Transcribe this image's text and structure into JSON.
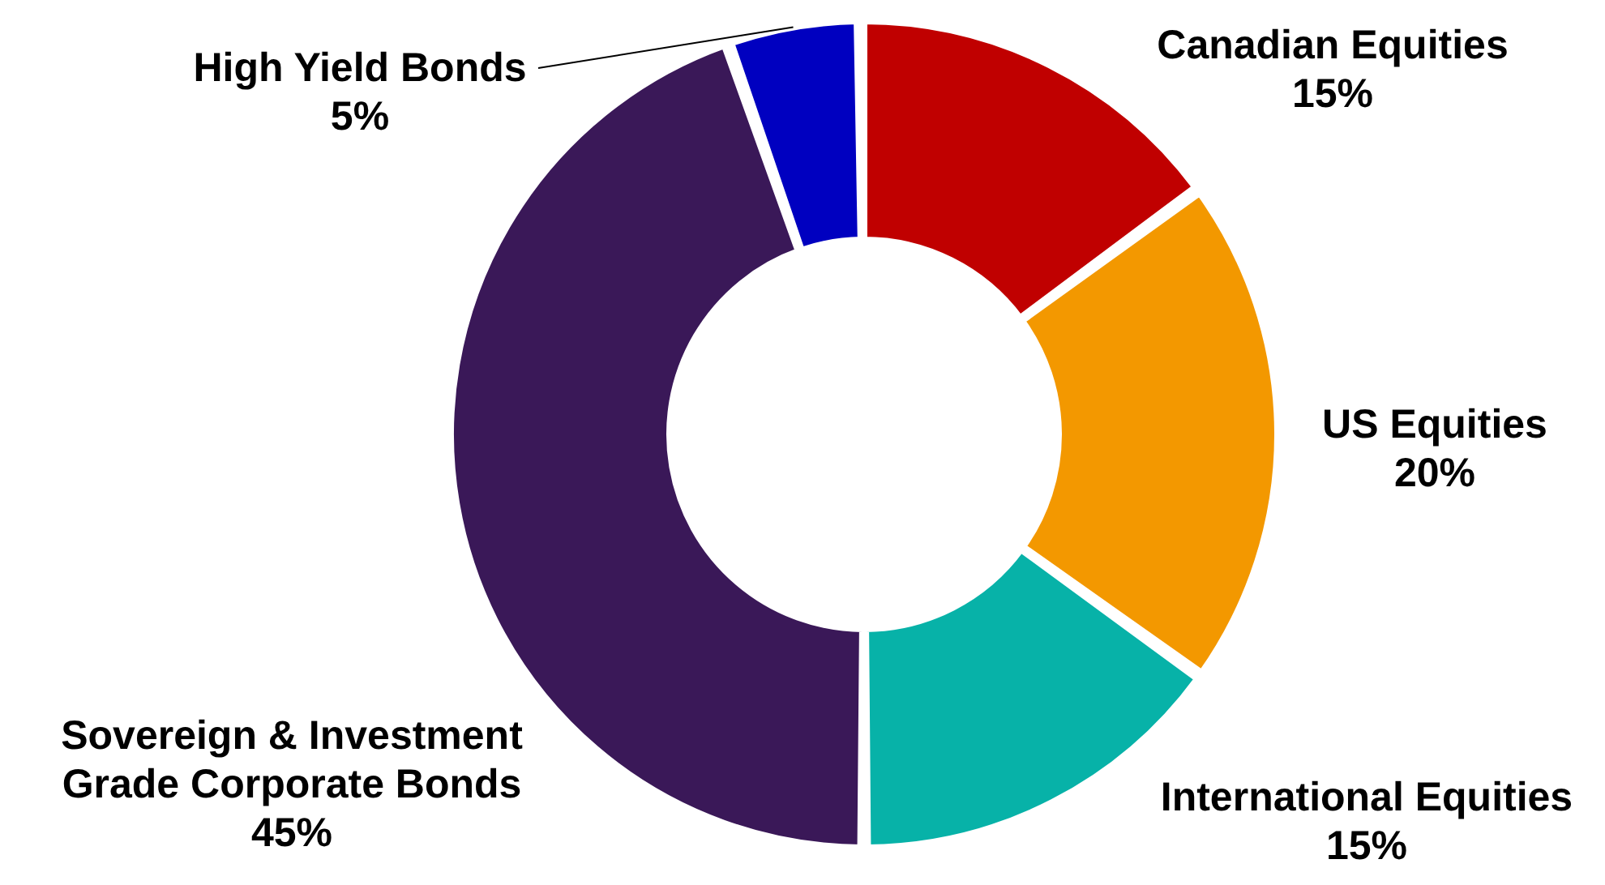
{
  "chart_data": {
    "type": "donut",
    "categories": [
      "Canadian Equities",
      "US Equities",
      "International Equities",
      "Sovereign & Investment Grade Corporate Bonds",
      "High Yield Bonds"
    ],
    "values": [
      15,
      20,
      15,
      45,
      5
    ],
    "value_labels": [
      "15%",
      "20%",
      "15%",
      "45%",
      "5%"
    ],
    "colors": [
      "#c00000",
      "#f39800",
      "#07b2a8",
      "#3a1858",
      "#0000c0"
    ],
    "legend": false
  }
}
